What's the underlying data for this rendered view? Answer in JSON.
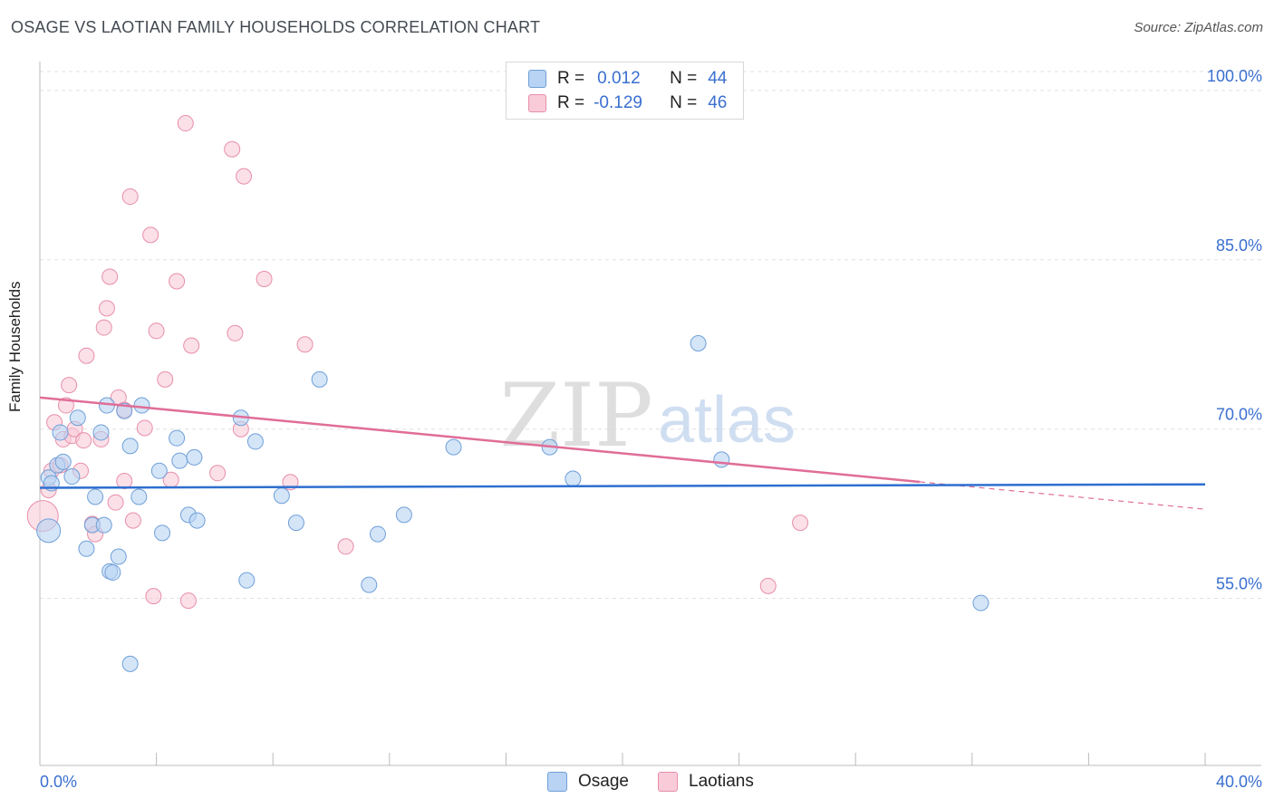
{
  "title": "OSAGE VS LAOTIAN FAMILY HOUSEHOLDS CORRELATION CHART",
  "source": "Source: ZipAtlas.com",
  "watermark": {
    "zip": "ZIP",
    "atlas": "atlas"
  },
  "legend_top": {
    "rows": [
      {
        "r_label": "R =",
        "r_value": "0.012",
        "n_label": "N =",
        "n_value": "44"
      },
      {
        "r_label": "R =",
        "r_value": "-0.129",
        "n_label": "N =",
        "n_value": "46"
      }
    ]
  },
  "legend_bottom": {
    "osage": "Osage",
    "laotians": "Laotians"
  },
  "colors": {
    "osage_fill": "#b8d3f3",
    "osage_stroke": "#6f9fd8",
    "osage_line": "#2e6fd0",
    "laotians_fill": "#f9cbd9",
    "laotians_stroke": "#e88ea9",
    "laotians_line": "#e06d97",
    "tick_label": "#3a6fd0",
    "grid": "#e0e0e0"
  },
  "chart_data": {
    "type": "scatter",
    "title": "OSAGE VS LAOTIAN FAMILY HOUSEHOLDS CORRELATION CHART",
    "xlabel": "",
    "ylabel": "Family Households",
    "xlim": [
      0,
      40
    ],
    "ylim": [
      40.2,
      102
    ],
    "x_tick_labels": [
      "0.0%",
      "40.0%"
    ],
    "y_ticks": [
      55,
      70,
      85,
      100
    ],
    "y_tick_labels": [
      "55.0%",
      "70.0%",
      "85.0%",
      "100.0%"
    ],
    "series": [
      {
        "name": "Osage",
        "r": 0.012,
        "n": 44,
        "trend": {
          "x": [
            0,
            40
          ],
          "y": [
            64.8,
            65.1
          ],
          "dashed_after": null
        },
        "points": [
          [
            0.3,
            61.0
          ],
          [
            0.3,
            65.7
          ],
          [
            0.4,
            65.2
          ],
          [
            0.6,
            66.8
          ],
          [
            0.7,
            69.7
          ],
          [
            0.8,
            67.1
          ],
          [
            1.1,
            65.8
          ],
          [
            1.3,
            71.0
          ],
          [
            1.6,
            59.4
          ],
          [
            1.8,
            61.5
          ],
          [
            1.9,
            64.0
          ],
          [
            2.1,
            69.7
          ],
          [
            2.2,
            61.5
          ],
          [
            2.3,
            72.1
          ],
          [
            2.4,
            57.4
          ],
          [
            2.5,
            57.3
          ],
          [
            2.7,
            58.7
          ],
          [
            2.9,
            71.6
          ],
          [
            3.1,
            49.2
          ],
          [
            3.1,
            68.5
          ],
          [
            3.4,
            64.0
          ],
          [
            3.5,
            72.1
          ],
          [
            4.1,
            66.3
          ],
          [
            4.2,
            60.8
          ],
          [
            4.7,
            69.2
          ],
          [
            4.8,
            67.2
          ],
          [
            5.1,
            62.4
          ],
          [
            5.3,
            67.5
          ],
          [
            5.4,
            61.9
          ],
          [
            6.9,
            71.0
          ],
          [
            7.1,
            56.6
          ],
          [
            7.4,
            68.9
          ],
          [
            8.3,
            64.1
          ],
          [
            8.8,
            61.7
          ],
          [
            9.6,
            74.4
          ],
          [
            11.3,
            56.2
          ],
          [
            11.6,
            60.7
          ],
          [
            12.5,
            62.4
          ],
          [
            14.2,
            68.4
          ],
          [
            17.5,
            68.4
          ],
          [
            18.3,
            65.6
          ],
          [
            22.6,
            77.6
          ],
          [
            23.4,
            67.3
          ],
          [
            32.3,
            54.6
          ]
        ]
      },
      {
        "name": "Laotians",
        "r": -0.129,
        "n": 46,
        "trend": {
          "x": [
            0,
            40
          ],
          "y": [
            72.8,
            62.9
          ],
          "solid_until_x": 30.2
        },
        "points": [
          [
            0.1,
            62.3
          ],
          [
            0.3,
            64.6
          ],
          [
            0.4,
            66.3
          ],
          [
            0.5,
            70.6
          ],
          [
            0.7,
            66.8
          ],
          [
            0.8,
            69.1
          ],
          [
            0.9,
            72.1
          ],
          [
            1.0,
            73.9
          ],
          [
            1.1,
            69.4
          ],
          [
            1.2,
            70.0
          ],
          [
            1.4,
            66.3
          ],
          [
            1.5,
            69.0
          ],
          [
            1.6,
            76.5
          ],
          [
            1.8,
            61.6
          ],
          [
            1.9,
            60.7
          ],
          [
            2.1,
            69.1
          ],
          [
            2.2,
            79.0
          ],
          [
            2.3,
            80.7
          ],
          [
            2.4,
            83.5
          ],
          [
            2.6,
            63.5
          ],
          [
            2.7,
            72.8
          ],
          [
            2.9,
            71.7
          ],
          [
            2.9,
            65.4
          ],
          [
            3.1,
            90.6
          ],
          [
            3.2,
            61.9
          ],
          [
            3.6,
            70.1
          ],
          [
            3.8,
            87.2
          ],
          [
            3.9,
            55.2
          ],
          [
            4.0,
            78.7
          ],
          [
            4.3,
            74.4
          ],
          [
            4.5,
            65.5
          ],
          [
            4.7,
            83.1
          ],
          [
            5.0,
            97.1
          ],
          [
            5.1,
            54.8
          ],
          [
            5.2,
            77.4
          ],
          [
            6.1,
            66.1
          ],
          [
            6.6,
            94.8
          ],
          [
            6.7,
            78.5
          ],
          [
            6.9,
            70.0
          ],
          [
            7.0,
            92.4
          ],
          [
            7.7,
            83.3
          ],
          [
            8.6,
            65.3
          ],
          [
            9.1,
            77.5
          ],
          [
            10.5,
            59.6
          ],
          [
            25.0,
            56.1
          ],
          [
            26.1,
            61.7
          ]
        ]
      }
    ]
  }
}
